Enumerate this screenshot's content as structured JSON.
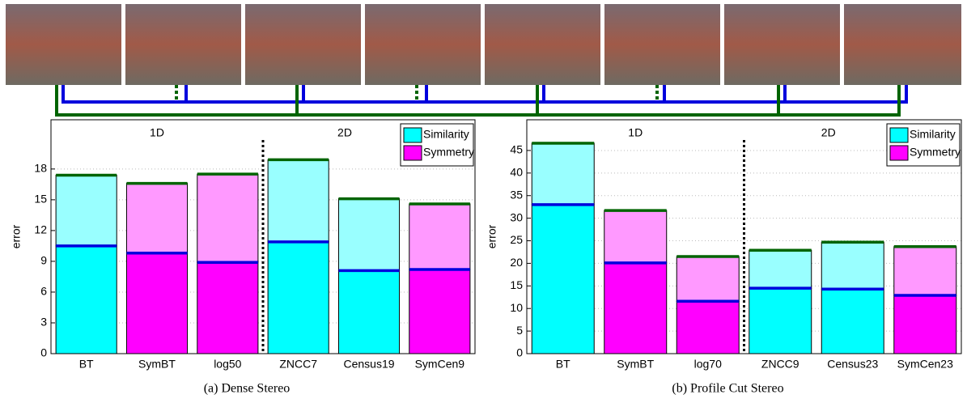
{
  "chart_data": [
    {
      "type": "bar",
      "caption": "(a)  Dense Stereo",
      "y_label": "error",
      "categories": [
        "BT",
        "SymBT",
        "log50",
        "ZNCC7",
        "Census19",
        "SymCen9"
      ],
      "base_values": [
        10.5,
        9.8,
        8.9,
        10.9,
        8.1,
        8.2
      ],
      "upper_values": [
        6.9,
        6.8,
        8.6,
        8.0,
        7.0,
        6.4
      ],
      "bar_series": [
        0,
        1,
        1,
        0,
        0,
        1
      ],
      "series": [
        {
          "name": "Similarity",
          "color": "#00ffff",
          "light_color": "#99ffff"
        },
        {
          "name": "Symmetry",
          "color": "#ff00ff",
          "light_color": "#ff99ff"
        }
      ],
      "base_line_color": "#0000dd",
      "upper_line_color": "#006400",
      "group_labels": [
        "1D",
        "2D"
      ],
      "divider_after": 3,
      "ylim": [
        0,
        22.8
      ],
      "yticks": [
        0,
        3,
        6,
        9,
        12,
        15,
        18
      ],
      "grid": true,
      "legend": "upper right"
    },
    {
      "type": "bar",
      "caption": "(b)  Profile Cut Stereo",
      "y_label": "error",
      "categories": [
        "BT",
        "SymBT",
        "log70",
        "ZNCC9",
        "Census23",
        "SymCen23"
      ],
      "base_values": [
        33.0,
        20.1,
        11.6,
        14.5,
        14.3,
        12.9
      ],
      "upper_values": [
        13.6,
        11.6,
        9.9,
        8.4,
        10.4,
        10.8
      ],
      "bar_series": [
        0,
        1,
        1,
        0,
        0,
        1
      ],
      "series": [
        {
          "name": "Similarity",
          "color": "#00ffff",
          "light_color": "#99ffff"
        },
        {
          "name": "Symmetry",
          "color": "#ff00ff",
          "light_color": "#ff99ff"
        }
      ],
      "base_line_color": "#0000dd",
      "upper_line_color": "#006400",
      "group_labels": [
        "1D",
        "2D"
      ],
      "divider_after": 3,
      "ylim": [
        0,
        51.8
      ],
      "yticks": [
        0,
        5,
        10,
        15,
        20,
        25,
        30,
        35,
        40,
        45
      ],
      "grid": true,
      "legend": "upper right"
    }
  ]
}
